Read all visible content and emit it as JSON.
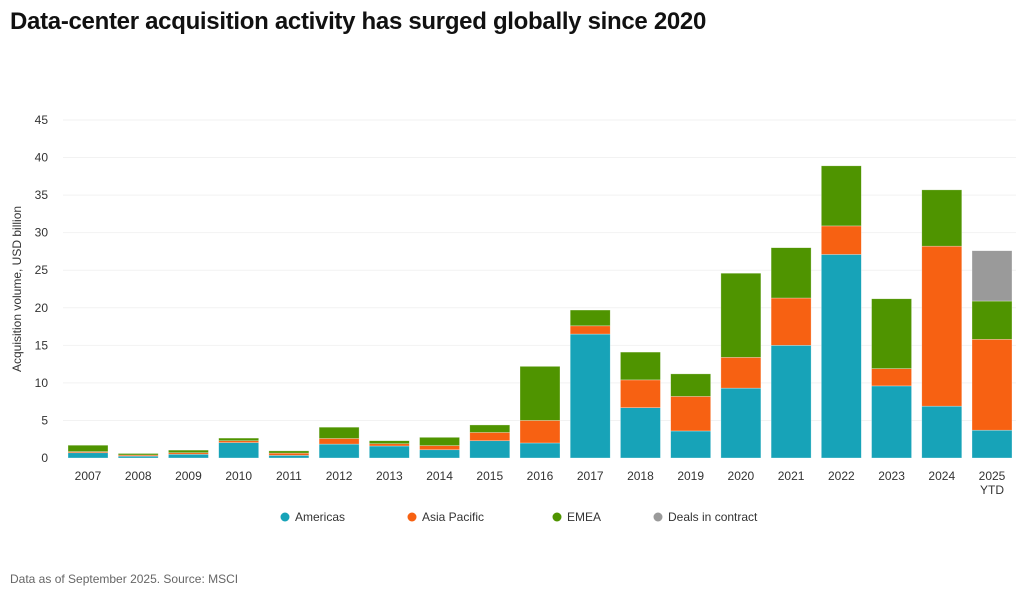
{
  "title": "Data-center acquisition activity has surged globally since 2020",
  "source": "Data as of September 2025. Source: MSCI",
  "chart_data": {
    "type": "bar",
    "stacked": true,
    "title": "Data-center acquisition activity has surged globally since 2020",
    "xlabel": "",
    "ylabel": "Acquisition volume, USD billion",
    "ylim": [
      0,
      45
    ],
    "yticks": [
      0,
      5,
      10,
      15,
      20,
      25,
      30,
      35,
      40,
      45
    ],
    "grid": true,
    "legend_position": "bottom",
    "categories": [
      "2007",
      "2008",
      "2009",
      "2010",
      "2011",
      "2012",
      "2013",
      "2014",
      "2015",
      "2016",
      "2017",
      "2018",
      "2019",
      "2020",
      "2021",
      "2022",
      "2023",
      "2024",
      "2025 YTD"
    ],
    "series": [
      {
        "name": "Americas",
        "color": "#17a3b8",
        "values": [
          0.7,
          0.25,
          0.5,
          2.05,
          0.35,
          1.85,
          1.6,
          1.1,
          2.3,
          2.0,
          16.5,
          6.7,
          3.6,
          9.3,
          15.0,
          27.1,
          9.6,
          6.9,
          3.7
        ]
      },
      {
        "name": "Asia Pacific",
        "color": "#f76112",
        "values": [
          0.15,
          0.15,
          0.2,
          0.25,
          0.3,
          0.75,
          0.3,
          0.55,
          1.1,
          3.0,
          1.1,
          3.7,
          4.6,
          4.1,
          6.3,
          3.8,
          2.3,
          21.3,
          12.1
        ]
      },
      {
        "name": "EMEA",
        "color": "#4f9400",
        "values": [
          0.85,
          0.2,
          0.35,
          0.35,
          0.3,
          1.5,
          0.4,
          1.1,
          1.0,
          7.2,
          2.1,
          3.7,
          3.0,
          11.2,
          6.7,
          8.0,
          9.3,
          7.5,
          5.1
        ]
      },
      {
        "name": "Deals in contract",
        "color": "#9a9a9a",
        "values": [
          0,
          0,
          0,
          0,
          0,
          0,
          0,
          0,
          0,
          0,
          0,
          0,
          0,
          0,
          0,
          0,
          0,
          0,
          6.7
        ]
      }
    ]
  }
}
